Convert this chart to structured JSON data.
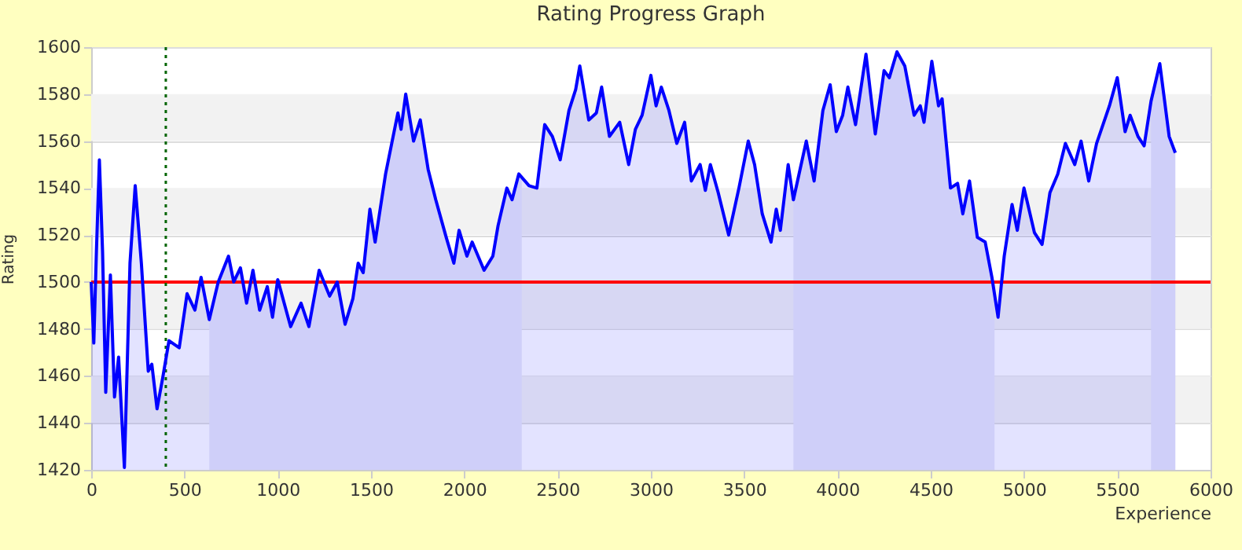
{
  "chart_data": {
    "type": "area",
    "title": "Rating Progress Graph",
    "xlabel": "Experience",
    "ylabel": "Rating",
    "x": [
      0,
      14,
      28,
      44,
      61,
      78,
      103,
      125,
      147,
      178,
      208,
      236,
      269,
      306,
      325,
      353,
      383,
      417,
      472,
      514,
      556,
      589,
      633,
      681,
      736,
      764,
      800,
      833,
      867,
      903,
      944,
      972,
      1000,
      1069,
      1125,
      1167,
      1222,
      1278,
      1319,
      1361,
      1403,
      1431,
      1458,
      1494,
      1522,
      1578,
      1644,
      1661,
      1686,
      1728,
      1764,
      1806,
      1847,
      1903,
      1944,
      1972,
      2014,
      2042,
      2106,
      2153,
      2181,
      2228,
      2256,
      2292,
      2347,
      2389,
      2431,
      2472,
      2514,
      2561,
      2597,
      2619,
      2667,
      2708,
      2736,
      2778,
      2833,
      2881,
      2917,
      2953,
      3000,
      3028,
      3056,
      3097,
      3139,
      3181,
      3217,
      3264,
      3292,
      3319,
      3361,
      3417,
      3472,
      3522,
      3556,
      3597,
      3644,
      3672,
      3694,
      3736,
      3764,
      3833,
      3875,
      3922,
      3961,
      3994,
      4028,
      4056,
      4097,
      4153,
      4203,
      4250,
      4278,
      4319,
      4361,
      4411,
      4444,
      4464,
      4506,
      4542,
      4561,
      4606,
      4644,
      4672,
      4708,
      4750,
      4792,
      4828,
      4861,
      4894,
      4936,
      4964,
      5000,
      5056,
      5097,
      5139,
      5181,
      5222,
      5272,
      5306,
      5347,
      5389,
      5458,
      5500,
      5542,
      5569,
      5611,
      5644,
      5681,
      5728,
      5778,
      5811
    ],
    "series": [
      {
        "color": "#0000ff",
        "values": [
          1500,
          1474,
          1513,
          1552,
          1513,
          1453,
          1503,
          1451,
          1468,
          1421,
          1508,
          1541,
          1508,
          1462,
          1465,
          1446,
          1459,
          1475,
          1472,
          1495,
          1488,
          1502,
          1484,
          1500,
          1511,
          1500,
          1506,
          1491,
          1505,
          1488,
          1498,
          1485,
          1501,
          1481,
          1491,
          1481,
          1505,
          1494,
          1500,
          1482,
          1493,
          1508,
          1504,
          1531,
          1517,
          1546,
          1572,
          1565,
          1580,
          1560,
          1569,
          1548,
          1535,
          1519,
          1508,
          1522,
          1511,
          1517,
          1505,
          1511,
          1524,
          1540,
          1535,
          1546,
          1541,
          1540,
          1567,
          1562,
          1552,
          1573,
          1582,
          1592,
          1569,
          1572,
          1583,
          1562,
          1568,
          1550,
          1565,
          1571,
          1588,
          1575,
          1583,
          1573,
          1559,
          1568,
          1543,
          1550,
          1539,
          1550,
          1538,
          1520,
          1540,
          1560,
          1550,
          1529,
          1517,
          1531,
          1522,
          1550,
          1535,
          1560,
          1543,
          1573,
          1584,
          1564,
          1571,
          1583,
          1567,
          1597,
          1563,
          1590,
          1587,
          1598,
          1592,
          1571,
          1575,
          1568,
          1594,
          1575,
          1578,
          1540,
          1542,
          1529,
          1543,
          1519,
          1517,
          1502,
          1485,
          1511,
          1533,
          1522,
          1540,
          1521,
          1516,
          1538,
          1546,
          1559,
          1550,
          1560,
          1543,
          1559,
          1575,
          1587,
          1564,
          1571,
          1562,
          1558,
          1577,
          1593,
          1562,
          1555
        ]
      },
      {
        "type": "area",
        "color": "#cfcff9",
        "x": [
          633,
          681,
          736,
          764,
          800,
          833,
          867,
          903,
          944,
          972,
          1000,
          1069,
          1125,
          1167,
          1222,
          1278,
          1319,
          1361,
          1403,
          1431,
          1458,
          1494,
          1522,
          1578,
          1644,
          1661,
          1686,
          1728,
          1764,
          1806,
          1847,
          1903,
          1944,
          1972,
          2014,
          2042,
          2106,
          2153,
          2181,
          2228,
          2256,
          2292,
          2308
        ],
        "values": [
          1484,
          1500,
          1511,
          1500,
          1506,
          1491,
          1505,
          1488,
          1498,
          1485,
          1501,
          1481,
          1491,
          1481,
          1505,
          1494,
          1500,
          1482,
          1493,
          1508,
          1504,
          1531,
          1517,
          1546,
          1572,
          1565,
          1580,
          1560,
          1569,
          1548,
          1535,
          1519,
          1508,
          1522,
          1511,
          1517,
          1505,
          1511,
          1524,
          1540,
          1535,
          1546,
          1545
        ]
      },
      {
        "type": "area",
        "color": "#cfcff9",
        "x": [
          3764,
          3833,
          3875,
          3922,
          3961,
          3994,
          4028,
          4056,
          4097,
          4153,
          4203,
          4250,
          4278,
          4319,
          4361,
          4411,
          4444,
          4464,
          4506,
          4542,
          4561,
          4606,
          4644,
          4672,
          4708,
          4750,
          4792,
          4828,
          4842
        ],
        "values": [
          1535,
          1560,
          1543,
          1573,
          1584,
          1564,
          1571,
          1583,
          1567,
          1597,
          1563,
          1590,
          1587,
          1598,
          1592,
          1571,
          1575,
          1568,
          1594,
          1575,
          1578,
          1540,
          1542,
          1529,
          1543,
          1519,
          1517,
          1502,
          1495
        ]
      },
      {
        "type": "area",
        "color": "#cfcff9",
        "x": [
          5681,
          5728,
          5778,
          5811
        ],
        "values": [
          1577,
          1593,
          1562,
          1555
        ]
      }
    ],
    "ref_lines": [
      {
        "axis": "y",
        "value": 1500,
        "color": "#ff0000",
        "line_style": "solid"
      },
      {
        "axis": "x",
        "value": 400,
        "color": "#006400",
        "line_style": "dotted"
      }
    ],
    "xlim": [
      0,
      6000
    ],
    "xticks": [
      0,
      500,
      1000,
      1500,
      2000,
      2500,
      3000,
      3500,
      4000,
      4500,
      5000,
      5500,
      6000
    ],
    "ylim": [
      1420,
      1600
    ],
    "yticks": [
      1420,
      1440,
      1460,
      1480,
      1500,
      1520,
      1540,
      1560,
      1580,
      1600
    ],
    "grid": "y"
  }
}
